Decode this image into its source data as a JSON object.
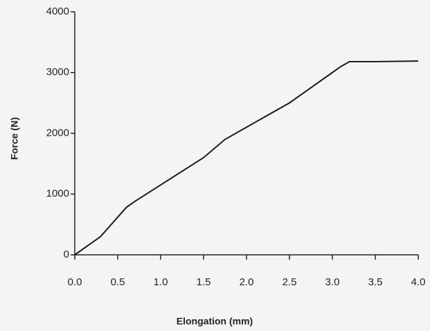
{
  "chart_data": {
    "type": "line",
    "xlabel": "Elongation (mm)",
    "ylabel": "Force (N)",
    "series": [
      {
        "color": "#1a1a1a",
        "x": [
          0,
          0.3,
          0.6,
          0.7,
          1.0,
          1.5,
          1.75,
          2.0,
          2.5,
          3.0,
          3.1,
          3.2,
          3.5,
          4.0
        ],
        "values": [
          0,
          300,
          780,
          880,
          1150,
          1600,
          1900,
          2100,
          2500,
          3000,
          3100,
          3180,
          3180,
          3190
        ]
      }
    ],
    "xlim": [
      0,
      4.0
    ],
    "xticks": [
      {
        "value": 0,
        "label": "0.0"
      },
      {
        "value": 0.5,
        "label": "0.5"
      },
      {
        "value": 1,
        "label": "1.0"
      },
      {
        "value": 1.5,
        "label": "1.5"
      },
      {
        "value": 2,
        "label": "2.0"
      },
      {
        "value": 2.5,
        "label": "2.5"
      },
      {
        "value": 3,
        "label": "3.0"
      },
      {
        "value": 3.5,
        "label": "3.5"
      },
      {
        "value": 4,
        "label": "4.0"
      }
    ],
    "ylim": [
      0,
      4000
    ],
    "yticks": [
      0,
      1000,
      2000,
      3000,
      4000
    ],
    "grid": false
  }
}
